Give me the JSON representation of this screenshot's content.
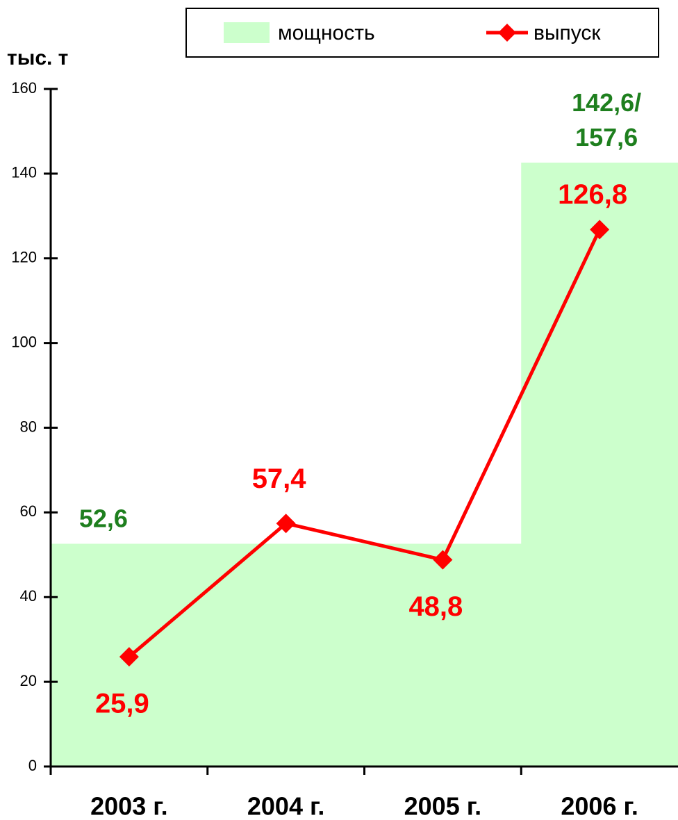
{
  "chart_data": {
    "type": "bar_line",
    "y_axis_label": "тыс. т",
    "categories": [
      "2003 г.",
      "2004 г.",
      "2005 г.",
      "2006 г."
    ],
    "ylim": [
      0,
      160
    ],
    "yticks": [
      0,
      20,
      40,
      60,
      80,
      100,
      120,
      140,
      160
    ],
    "legend": "top",
    "series": [
      {
        "name": "мощность",
        "type": "bar",
        "color": "#ccffcc",
        "label_color": "#1e7f1e",
        "values": [
          52.6,
          52.6,
          52.6,
          142.6
        ],
        "value_labels": [
          "52,6",
          null,
          null,
          "142,6/157,6"
        ]
      },
      {
        "name": "выпуск",
        "type": "line",
        "color": "#ff0000",
        "label_color": "#ff0000",
        "values": [
          25.9,
          57.4,
          48.8,
          126.8
        ],
        "value_labels": [
          "25,9",
          "57,4",
          "48,8",
          "126,8"
        ]
      }
    ]
  }
}
